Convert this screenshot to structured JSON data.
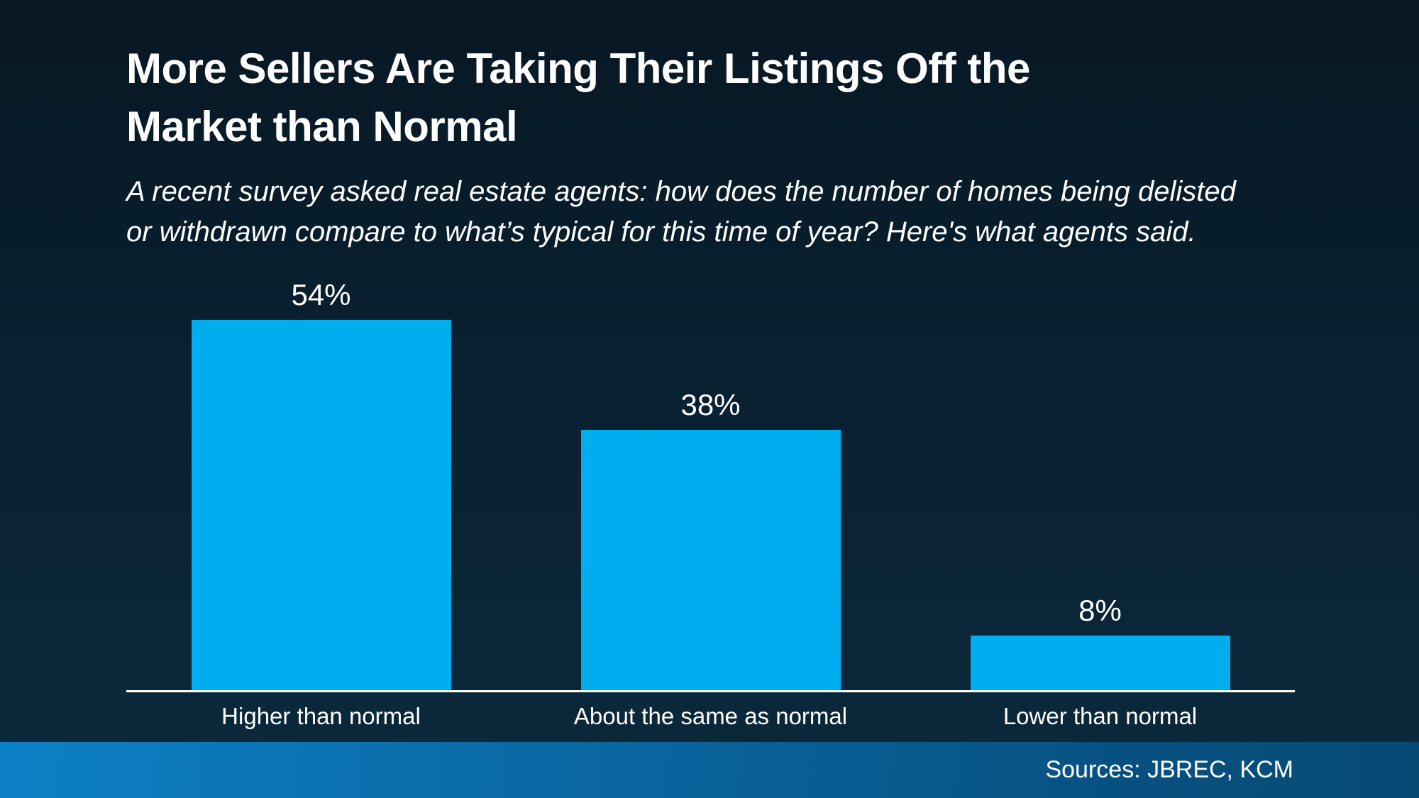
{
  "header": {
    "title_lines": [
      "More Sellers Are Taking Their Listings Off the",
      "Market than Normal"
    ],
    "subtitle_lines": [
      "A recent survey asked real estate agents: how does the number of homes being delisted",
      "or withdrawn compare to what’s typical for this time of year? Here's what agents said."
    ]
  },
  "chart_data": {
    "type": "bar",
    "title": "More Sellers Are Taking Their Listings Off the Market than Normal",
    "subtitle": "A recent survey asked real estate agents: how does the number of homes being delisted or withdrawn compare to what’s typical for this time of year? Here's what agents said.",
    "categories": [
      "Higher than normal",
      "About the same as normal",
      "Lower than normal"
    ],
    "values": [
      54,
      38,
      8
    ],
    "value_labels": [
      "54%",
      "38%",
      "8%"
    ],
    "xlabel": "",
    "ylabel": "",
    "ylim": [
      0,
      60
    ],
    "grid": false,
    "legend": false,
    "y_axis_visible": false,
    "baseline_visible": true
  },
  "footer": {
    "sources_label": "Sources: JBREC, KCM"
  },
  "colors": {
    "bar": "#00AEEF",
    "axis": "#FFFFFF",
    "text": "#FFFFFF",
    "background_top": "#081823",
    "background_mid": "#092132",
    "background_bottom": "#0B2A3C",
    "footer_gradient_left": "#0C80C5",
    "footer_gradient_right": "#064A74"
  }
}
